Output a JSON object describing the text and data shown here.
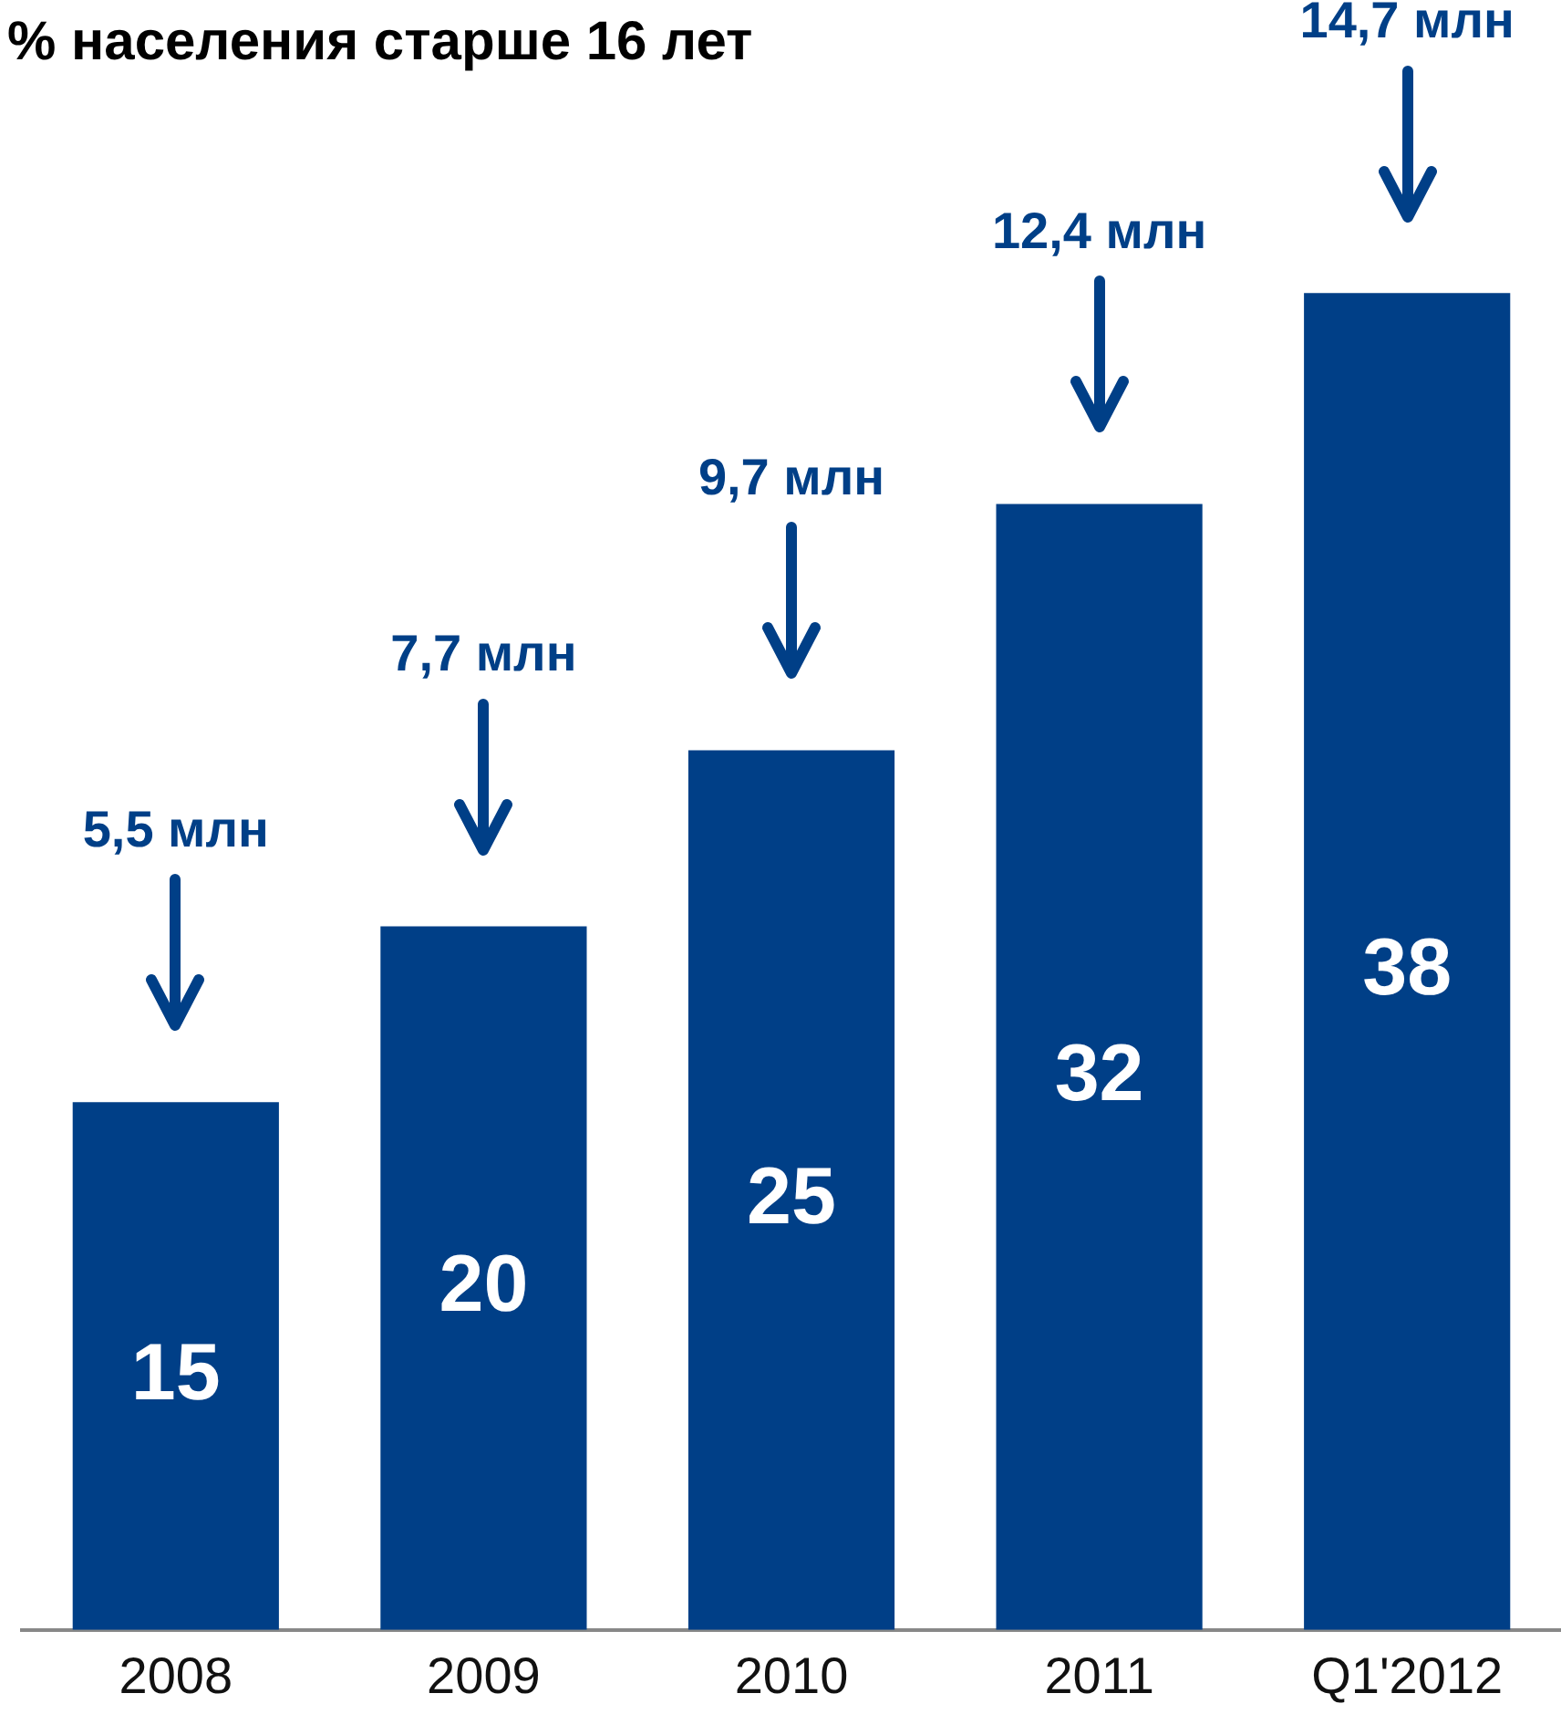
{
  "chart_data": {
    "type": "bar",
    "title": "% населения старше 16 лет",
    "categories": [
      "2008",
      "2009",
      "2010",
      "2011",
      "Q1'2012"
    ],
    "values": [
      15,
      20,
      25,
      32,
      38
    ],
    "color": "#003f87",
    "data_labels": true,
    "tick_labels": "x",
    "grid": false,
    "legend": false,
    "annotations": [
      "5,5 млн",
      "7,7 млн",
      "9,7 млн",
      "12,4 млн",
      "14,7 млн"
    ]
  }
}
